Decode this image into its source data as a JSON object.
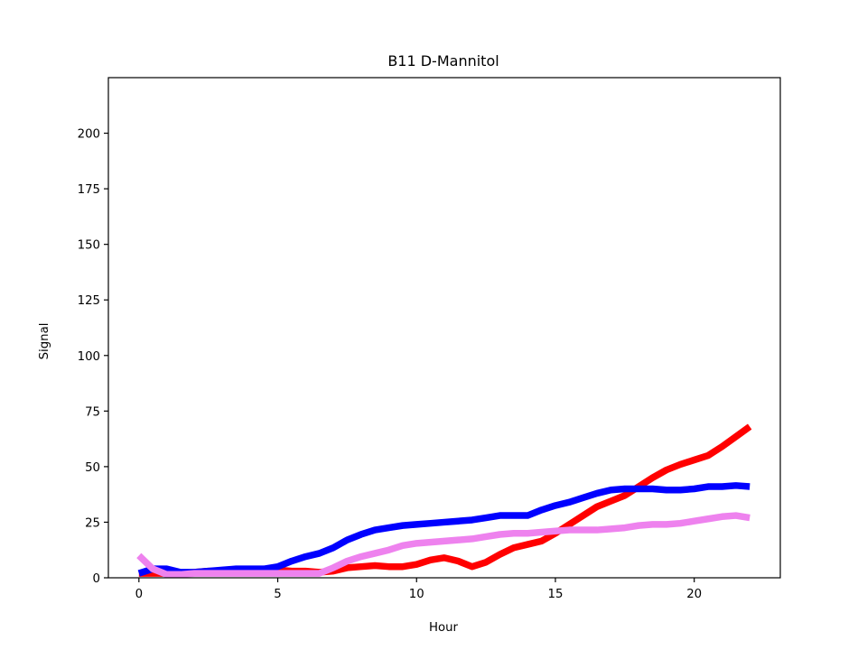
{
  "chart_data": {
    "type": "line",
    "title": "B11 D-Mannitol",
    "xlabel": "Hour",
    "ylabel": "Signal",
    "xlim": [
      -1.1,
      23.1
    ],
    "ylim": [
      0,
      225
    ],
    "xticks": [
      0,
      5,
      10,
      15,
      20
    ],
    "yticks": [
      0,
      25,
      50,
      75,
      100,
      125,
      150,
      175,
      200
    ],
    "grid": false,
    "legend": "none",
    "x": [
      0,
      0.5,
      1,
      1.5,
      2,
      2.5,
      3,
      3.5,
      4,
      4.5,
      5,
      5.5,
      6,
      6.5,
      7,
      7.5,
      8,
      8.5,
      9,
      9.5,
      10,
      10.5,
      11,
      11.5,
      12,
      12.5,
      13,
      13.5,
      14,
      14.5,
      15,
      15.5,
      16,
      16.5,
      17,
      17.5,
      18,
      18.5,
      19,
      19.5,
      20,
      20.5,
      21,
      21.5,
      22
    ],
    "series": [
      {
        "color": "#ff0000",
        "values": [
          2,
          2,
          2,
          2,
          2.5,
          3,
          3,
          3.5,
          3.5,
          3.5,
          3.5,
          3,
          3,
          2.5,
          3,
          4.5,
          5,
          5.5,
          5,
          5,
          6,
          8,
          9,
          7.5,
          5,
          7,
          10.5,
          13.5,
          15,
          16.5,
          20,
          24,
          28,
          32,
          34.5,
          37,
          41,
          45,
          48.5,
          51,
          53,
          55,
          59,
          63.5,
          68
        ]
      },
      {
        "color": "#0000ff",
        "values": [
          2,
          4,
          4,
          2.5,
          2.5,
          3,
          3.5,
          4,
          4,
          4,
          5,
          7.5,
          9.5,
          11,
          13.5,
          17,
          19.5,
          21.5,
          22.5,
          23.5,
          24,
          24.5,
          25,
          25.5,
          26,
          27,
          28,
          28,
          28,
          30.5,
          32.5,
          34,
          36,
          38,
          39.5,
          40,
          40,
          40,
          39.5,
          39.5,
          40,
          41,
          41,
          41.5,
          41
        ]
      },
      {
        "color": "#ee82ee",
        "values": [
          10,
          4,
          1.5,
          1.5,
          2,
          2,
          2,
          2,
          2,
          2,
          2,
          2,
          2,
          2,
          4.5,
          7.5,
          9.5,
          11,
          12.5,
          14.5,
          15.5,
          16,
          16.5,
          17,
          17.5,
          18.5,
          19.5,
          20,
          20,
          20.5,
          21,
          21.5,
          21.5,
          21.5,
          22,
          22.5,
          23.5,
          24,
          24,
          24.5,
          25.5,
          26.5,
          27.5,
          28,
          27
        ]
      }
    ]
  }
}
